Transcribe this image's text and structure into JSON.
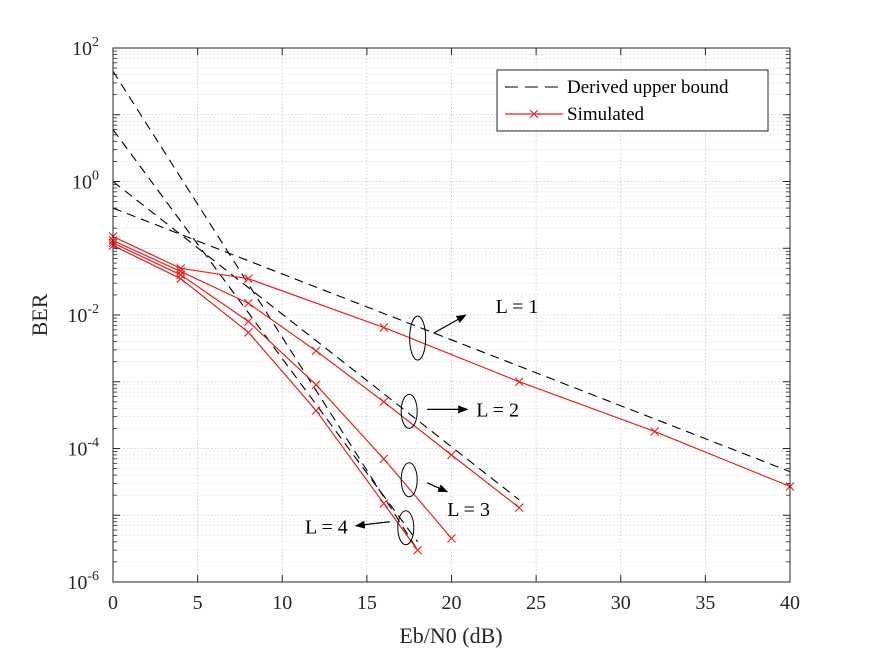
{
  "chart_data": {
    "type": "line",
    "xlabel": "Eb/N0 (dB)",
    "ylabel": "BER",
    "xlim": [
      0,
      40
    ],
    "ylim": [
      1e-06,
      100
    ],
    "yscale": "log",
    "x_ticks": [
      0,
      5,
      10,
      15,
      20,
      25,
      30,
      35,
      40
    ],
    "y_ticks": [
      {
        "value": 1e-06,
        "base": "10",
        "exp": "-6"
      },
      {
        "value": 0.0001,
        "base": "10",
        "exp": "-4"
      },
      {
        "value": 0.01,
        "base": "10",
        "exp": "-2"
      },
      {
        "value": 1,
        "base": "10",
        "exp": "0"
      },
      {
        "value": 100,
        "base": "10",
        "exp": "2"
      }
    ],
    "grid": true,
    "legend": {
      "position": "top-right",
      "entries": [
        {
          "label": "Derived upper bound",
          "style": "dashed",
          "color": "#000000"
        },
        {
          "label": "Simulated",
          "style": "solid-x",
          "color": "#e8201f"
        }
      ]
    },
    "series": [
      {
        "name": "Derived upper bound, L = 1",
        "style": "dashed",
        "color": "#000000",
        "x": [
          0,
          40
        ],
        "y": [
          0.4,
          4.5e-05
        ]
      },
      {
        "name": "Derived upper bound, L = 2",
        "style": "dashed",
        "color": "#000000",
        "x": [
          0,
          24
        ],
        "y": [
          1.0,
          1.7e-05
        ]
      },
      {
        "name": "Derived upper bound, L = 3",
        "style": "dashed",
        "color": "#000000",
        "x": [
          0,
          18
        ],
        "y": [
          6.0,
          4e-06
        ]
      },
      {
        "name": "Derived upper bound, L = 4",
        "style": "dashed",
        "color": "#000000",
        "x": [
          0,
          18
        ],
        "y": [
          45.0,
          3e-06
        ]
      },
      {
        "name": "Simulated, L = 1",
        "style": "solid-x",
        "color": "#e8201f",
        "x": [
          0,
          4,
          8,
          16,
          24,
          32,
          40
        ],
        "y": [
          0.15,
          0.05,
          0.035,
          0.0065,
          0.001,
          0.00018,
          2.7e-05
        ]
      },
      {
        "name": "Simulated, L = 2",
        "style": "solid-x",
        "color": "#e8201f",
        "x": [
          0,
          4,
          8,
          12,
          16,
          20,
          24
        ],
        "y": [
          0.13,
          0.045,
          0.015,
          0.0029,
          0.0005,
          8e-05,
          1.3e-05
        ]
      },
      {
        "name": "Simulated, L = 3",
        "style": "solid-x",
        "color": "#e8201f",
        "x": [
          0,
          4,
          8,
          12,
          16,
          20
        ],
        "y": [
          0.12,
          0.04,
          0.008,
          0.0009,
          7e-05,
          4.5e-06
        ]
      },
      {
        "name": "Simulated, L = 4",
        "style": "solid-x",
        "color": "#e8201f",
        "x": [
          0,
          4,
          8,
          12,
          16,
          18
        ],
        "y": [
          0.11,
          0.035,
          0.0055,
          0.00037,
          1.5e-05,
          3e-06
        ]
      }
    ],
    "annotations": [
      {
        "text": "L = 1",
        "ellipse_at": {
          "x": 18,
          "y": 0.0045
        },
        "arrow_direction": "right-up",
        "label_side": "right"
      },
      {
        "text": "L = 2",
        "ellipse_at": {
          "x": 17.5,
          "y": 0.00036
        },
        "arrow_direction": "right",
        "label_side": "right"
      },
      {
        "text": "L = 3",
        "ellipse_at": {
          "x": 17.5,
          "y": 3.4e-05
        },
        "arrow_direction": "right-down",
        "label_side": "right"
      },
      {
        "text": "L = 4",
        "ellipse_at": {
          "x": 17.3,
          "y": 6.5e-06
        },
        "arrow_direction": "left",
        "label_side": "left"
      }
    ]
  }
}
